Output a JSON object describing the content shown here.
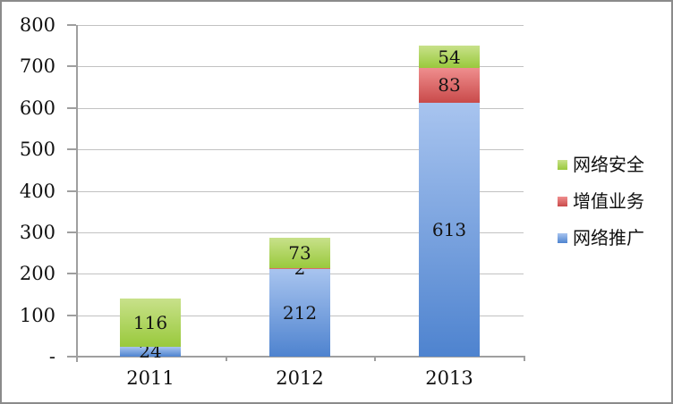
{
  "chart_data": {
    "type": "bar",
    "stacked": true,
    "title": "",
    "xlabel": "",
    "ylabel": "",
    "categories": [
      "2011",
      "2012",
      "2013"
    ],
    "series": [
      {
        "name": "网络推广",
        "color_light": "#a8c4ef",
        "color_dark": "#4e83cf",
        "values": [
          24,
          212,
          613
        ]
      },
      {
        "name": "增值业务",
        "color_light": "#ef8e8e",
        "color_dark": "#c94a4a",
        "values": [
          0,
          2,
          83
        ]
      },
      {
        "name": "网络安全",
        "color_light": "#c8e18a",
        "color_dark": "#99c93c",
        "values": [
          116,
          73,
          54
        ]
      }
    ],
    "data_labels": {
      "2011": {
        "网络推广": "24",
        "增值业务": "",
        "网络安全": "116"
      },
      "2012": {
        "网络推广": "212",
        "增值业务": "2",
        "网络安全": "73"
      },
      "2013": {
        "网络推广": "613",
        "增值业务": "83",
        "网络安全": "54"
      }
    },
    "ylim": [
      0,
      800
    ],
    "ytick_step": 100,
    "ytick_labels": [
      "-",
      "100",
      "200",
      "300",
      "400",
      "500",
      "600",
      "700",
      "800"
    ],
    "grid": true,
    "legend_position": "right",
    "legend": [
      "网络安全",
      "增值业务",
      "网络推广"
    ]
  },
  "style_colors": {
    "gridline": "#c2c2c2",
    "axis": "#9f9f9f",
    "frame_border": "#8b8b8b",
    "label_text": "#111111"
  }
}
